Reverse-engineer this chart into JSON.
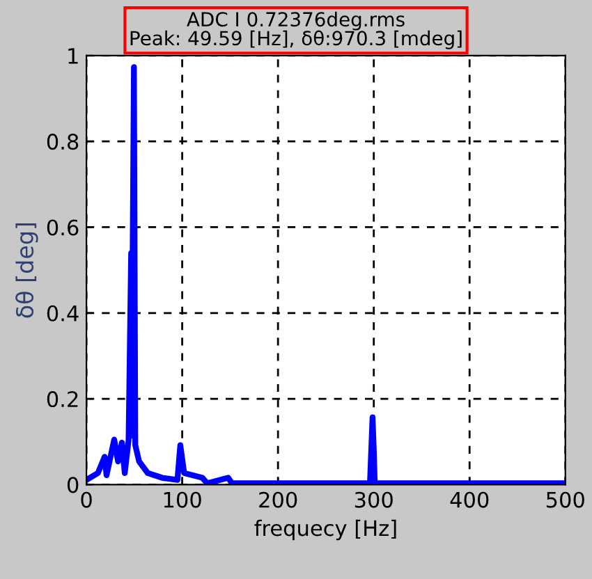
{
  "chart_data": {
    "type": "line",
    "xlabel": "frequecy [Hz]",
    "ylabel": "δθ [deg]",
    "annotations": [
      "ADC I 0.72376deg.rms",
      "Peak: 49.59 [Hz], δθ:970.3 [mdeg]"
    ],
    "x": [
      0,
      12,
      19,
      21,
      29,
      33,
      37,
      40,
      44,
      46.7,
      47,
      49.59,
      51,
      55,
      64,
      79,
      95,
      98,
      102,
      121,
      126,
      148,
      152,
      296,
      298.7,
      300,
      301,
      500
    ],
    "series": [
      {
        "color": "#0000ff",
        "values": [
          0.011,
          0.027,
          0.065,
          0.022,
          0.105,
          0.054,
          0.098,
          0.027,
          0.103,
          0.54,
          0.114,
          0.973,
          0.092,
          0.054,
          0.027,
          0.016,
          0.011,
          0.092,
          0.027,
          0.016,
          0.003,
          0.016,
          0.003,
          0.003,
          0.157,
          0.08,
          0.003,
          0.003
        ]
      }
    ],
    "xlim": [
      0,
      500
    ],
    "xticks": [
      0,
      100,
      200,
      300,
      400,
      500
    ],
    "ylim": [
      0,
      1
    ],
    "yticks": [
      0,
      0.2,
      0.4,
      0.6,
      0.8,
      1
    ],
    "grid": true,
    "legend": false,
    "marker": "none",
    "line_style": "solid"
  }
}
